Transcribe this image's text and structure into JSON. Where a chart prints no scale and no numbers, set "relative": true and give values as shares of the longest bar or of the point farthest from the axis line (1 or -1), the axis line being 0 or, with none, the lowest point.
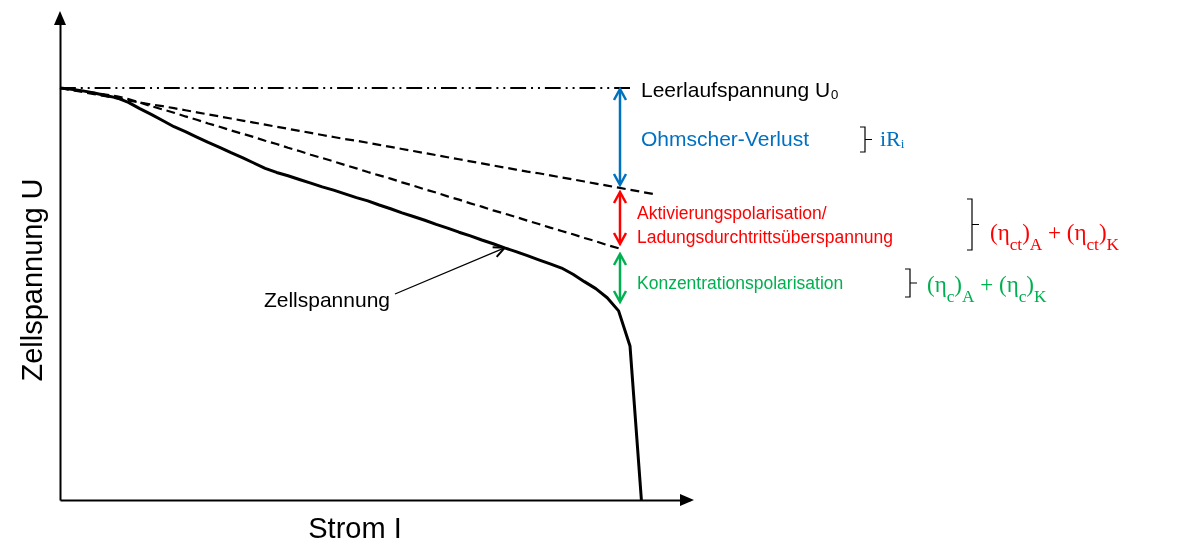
{
  "chart_data": {
    "type": "line",
    "relative": true,
    "xlabel": "Strom I",
    "ylabel": "Zellspannung U",
    "categories": [
      null,
      null,
      null,
      null,
      null,
      null,
      null,
      null,
      null,
      null,
      null,
      null,
      null,
      null,
      null,
      null,
      null,
      null,
      null,
      null,
      null,
      null,
      null,
      null,
      null,
      null,
      null,
      null,
      null,
      null,
      null,
      null,
      null,
      null,
      null,
      null,
      null,
      null,
      null,
      null,
      null,
      null,
      null,
      null,
      null,
      null,
      null,
      null,
      null,
      null,
      null,
      null,
      null,
      null,
      null,
      null
    ],
    "series": [
      {
        "color": "#000000",
        "line_style": "dotted",
        "values": [
          1,
          1,
          1,
          1,
          1,
          1,
          1,
          1,
          1,
          1,
          1,
          1,
          1,
          1,
          1,
          1,
          1,
          1,
          1,
          1,
          1,
          1,
          1,
          1,
          1,
          1,
          1,
          1,
          1,
          1,
          1,
          1,
          1,
          1,
          1,
          1,
          1,
          1,
          1,
          1,
          1,
          1,
          1,
          1,
          1,
          1,
          1,
          1,
          1,
          1,
          1,
          null,
          null,
          null,
          null,
          null
        ]
      },
      {
        "color": "#000000",
        "line_style": "dashed",
        "values": [
          1,
          0.995,
          0.99,
          0.985,
          0.98,
          0.975,
          0.97,
          0.965,
          0.96,
          0.956,
          0.951,
          0.946,
          0.941,
          0.936,
          0.931,
          0.926,
          0.921,
          0.916,
          0.911,
          0.906,
          0.901,
          0.896,
          0.891,
          0.886,
          0.881,
          0.876,
          0.872,
          0.867,
          0.862,
          0.857,
          0.852,
          0.847,
          0.842,
          0.837,
          0.832,
          0.827,
          0.822,
          0.817,
          0.812,
          0.807,
          0.802,
          0.797,
          0.793,
          0.788,
          0.783,
          0.778,
          0.773,
          0.768,
          0.763,
          0.758,
          0.753,
          0.748,
          0.743,
          null,
          null,
          null
        ]
      },
      {
        "color": "#000000",
        "line_style": "dashed",
        "values": [
          1,
          0.996,
          0.992,
          0.988,
          0.984,
          0.98,
          0.973,
          0.965,
          0.956,
          0.948,
          0.94,
          0.931,
          0.923,
          0.914,
          0.906,
          0.897,
          0.889,
          0.881,
          0.872,
          0.864,
          0.855,
          0.847,
          0.838,
          0.83,
          0.822,
          0.813,
          0.805,
          0.796,
          0.788,
          0.78,
          0.771,
          0.763,
          0.754,
          0.746,
          0.737,
          0.729,
          0.72,
          0.712,
          0.703,
          0.695,
          0.687,
          0.678,
          0.67,
          0.661,
          0.653,
          0.645,
          0.636,
          0.628,
          0.619,
          0.611,
          null,
          null,
          null,
          null,
          null,
          null
        ]
      },
      {
        "color": "#000000",
        "line_style": "solid",
        "values": [
          1,
          0.997,
          0.993,
          0.988,
          0.982,
          0.976,
          0.965,
          0.95,
          0.936,
          0.921,
          0.906,
          0.894,
          0.881,
          0.868,
          0.856,
          0.843,
          0.831,
          0.818,
          0.805,
          0.795,
          0.787,
          0.778,
          0.769,
          0.76,
          0.752,
          0.743,
          0.734,
          0.726,
          0.716,
          0.707,
          0.697,
          0.688,
          0.679,
          0.669,
          0.66,
          0.65,
          0.641,
          0.631,
          0.622,
          0.612,
          0.603,
          0.593,
          0.583,
          0.573,
          0.563,
          0.548,
          0.53,
          0.513,
          0.491,
          0.459,
          0.374,
          0,
          null,
          null,
          null,
          null
        ]
      }
    ],
    "annotations": [
      "Leerlaufspannung U₀",
      "Ohmscher-Verlust",
      "iRᵢ",
      "Aktivierungspolarisation/ Ladungsdurchtrittsüberspannung",
      "(η$_{ct}$)$_{A}$ + (η$_{ct}$)$_{K}$",
      "Konzentrationspolarisation",
      "(η$_{c}$)$_{A}$ + (η$_{c}$)$_{K}$",
      "Zellspannung"
    ]
  }
}
